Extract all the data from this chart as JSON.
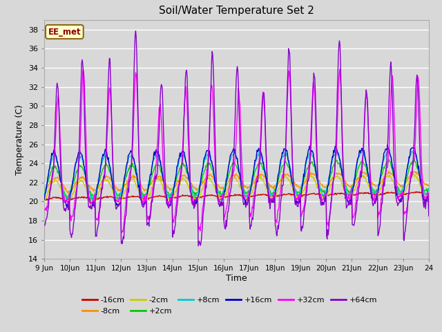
{
  "title": "Soil/Water Temperature Set 2",
  "xlabel": "Time",
  "ylabel": "Temperature (C)",
  "ylim": [
    14,
    39
  ],
  "yticks": [
    14,
    16,
    18,
    20,
    22,
    24,
    26,
    28,
    30,
    32,
    34,
    36,
    38
  ],
  "bg_color": "#d8d8d8",
  "plot_bg_color": "#d8d8d8",
  "annotation_text": "EE_met",
  "annotation_bg": "#ffffcc",
  "annotation_border": "#8b6914",
  "series_colors": {
    "-16cm": "#cc0000",
    "-8cm": "#ff8c00",
    "-2cm": "#cccc00",
    "+2cm": "#00cc00",
    "+8cm": "#00cccc",
    "+16cm": "#0000cc",
    "+32cm": "#ff00ff",
    "+64cm": "#8800cc"
  },
  "n_points": 720,
  "x_start": 9.0,
  "x_end": 24.0,
  "xtick_positions": [
    9,
    10,
    11,
    12,
    13,
    14,
    15,
    16,
    17,
    18,
    19,
    20,
    21,
    22,
    23,
    24
  ],
  "xtick_labels": [
    "9 Jun",
    "10Jun",
    "11Jun",
    "12Jun",
    "13Jun",
    "14Jun",
    "15Jun",
    "16Jun",
    "17Jun",
    "18Jun",
    "19Jun",
    "20Jun",
    "21Jun",
    "22Jun",
    "23Jun",
    "24"
  ],
  "legend_entries": [
    "-16cm",
    "-8cm",
    "-2cm",
    "+2cm",
    "+8cm",
    "+16cm",
    "+32cm",
    "+64cm"
  ]
}
